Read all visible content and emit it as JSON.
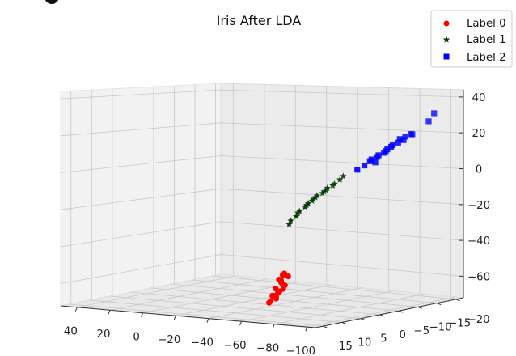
{
  "chart_data": {
    "type": "scatter",
    "title": "Iris After LDA",
    "projection": "3d",
    "xlabel": "",
    "ylabel": "",
    "zlabel": "",
    "x_ticks": [
      "40",
      "20",
      "0",
      "−20",
      "−40",
      "−60",
      "−80",
      "−100"
    ],
    "y_ticks": [
      "15",
      "10",
      "5",
      "0",
      "−5",
      "−10",
      "−15",
      "−20"
    ],
    "z_ticks": [
      "40",
      "20",
      "0",
      "−20",
      "−40",
      "−60"
    ],
    "xlim": [
      50,
      -105
    ],
    "ylim": [
      17,
      -22
    ],
    "zlim": [
      -72,
      44
    ],
    "grid": true,
    "legend_position": "top-right",
    "series": [
      {
        "name": "Label 0",
        "marker": "circle",
        "color": "#ff0000",
        "points": [
          [
            -62,
            7,
            -51
          ],
          [
            -63,
            6,
            -52
          ],
          [
            -62,
            8,
            -53
          ],
          [
            -61,
            7,
            -55
          ],
          [
            -62,
            7,
            -56
          ],
          [
            -61,
            6,
            -57
          ],
          [
            -60,
            8,
            -58
          ],
          [
            -60,
            7,
            -60
          ],
          [
            -59,
            7,
            -61
          ],
          [
            -59,
            8,
            -62
          ],
          [
            -58,
            7,
            -63
          ],
          [
            -58,
            7,
            -64
          ],
          [
            -57,
            8,
            -65
          ],
          [
            -56,
            8,
            -66
          ],
          [
            -63,
            7,
            -50
          ],
          [
            -61,
            7,
            -54
          ],
          [
            -60,
            6,
            -59
          ],
          [
            -58,
            8,
            -62
          ]
        ]
      },
      {
        "name": "Label 1",
        "marker": "star",
        "color": "#0b3d0b",
        "points": [
          [
            -69,
            1,
            -10
          ],
          [
            -71,
            0,
            -8
          ],
          [
            -73,
            0,
            -6
          ],
          [
            -75,
            -1,
            -4
          ],
          [
            -68,
            1,
            -11
          ],
          [
            -66,
            2,
            -14
          ],
          [
            -64,
            2,
            -16
          ],
          [
            -63,
            3,
            -18
          ],
          [
            -62,
            3,
            -19
          ],
          [
            -61,
            3,
            -21
          ],
          [
            -60,
            4,
            -23
          ],
          [
            -59,
            4,
            -25
          ],
          [
            -70,
            0,
            -9
          ],
          [
            -72,
            0,
            -7
          ],
          [
            -74,
            -1,
            -5
          ],
          [
            -67,
            1,
            -12
          ],
          [
            -65,
            2,
            -15
          ],
          [
            -66,
            1,
            -13
          ],
          [
            -76,
            -2,
            -2
          ],
          [
            -78,
            -2,
            0
          ]
        ]
      },
      {
        "name": "Label 2",
        "marker": "square",
        "color": "#0000ff",
        "points": [
          [
            -84,
            -5,
            5
          ],
          [
            -85,
            -6,
            7
          ],
          [
            -87,
            -7,
            9
          ],
          [
            -88,
            -7,
            10
          ],
          [
            -90,
            -8,
            12
          ],
          [
            -91,
            -9,
            14
          ],
          [
            -93,
            -10,
            16
          ],
          [
            -94,
            -10,
            18
          ],
          [
            -95,
            -11,
            19
          ],
          [
            -96,
            -12,
            20
          ],
          [
            -82,
            -4,
            3
          ],
          [
            -86,
            -6,
            8
          ],
          [
            -89,
            -8,
            11
          ],
          [
            -92,
            -9,
            15
          ],
          [
            -94,
            -11,
            17
          ],
          [
            -97,
            -12,
            20
          ],
          [
            -100,
            -15,
            26
          ],
          [
            -101,
            -16,
            30
          ],
          [
            -86,
            -7,
            6
          ],
          [
            -91,
            -8,
            13
          ]
        ]
      }
    ]
  }
}
